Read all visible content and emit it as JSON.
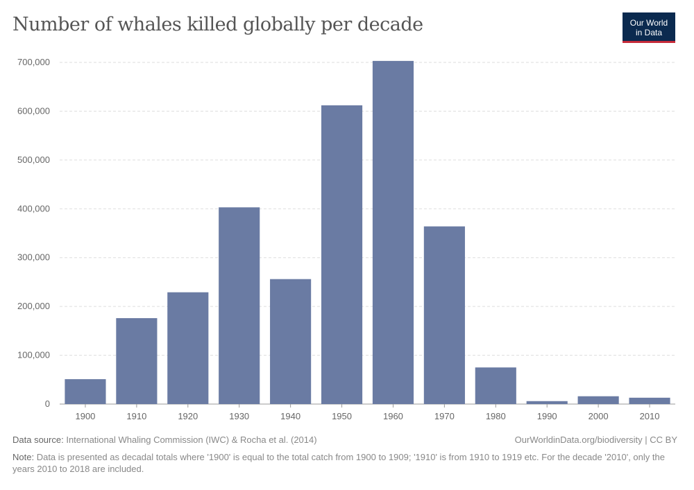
{
  "title": "Number of whales killed globally per decade",
  "logo": {
    "line1": "Our World",
    "line2": "in Data"
  },
  "footer": {
    "source_label": "Data source:",
    "source": "International Whaling Commission (IWC) & Rocha et al. (2014)",
    "url": "OurWorldinData.org/biodiversity | CC BY",
    "note_label": "Note:",
    "note": "Data is presented as decadal totals where '1900' is equal to the total catch from 1900 to 1909; '1910' is from 1910 to 1919 etc. For the decade '2010', only the years 2010 to 2018 are included."
  },
  "chart_data": {
    "type": "bar",
    "title": "Number of whales killed globally per decade",
    "categories": [
      "1900",
      "1910",
      "1920",
      "1930",
      "1940",
      "1950",
      "1960",
      "1970",
      "1980",
      "1990",
      "2000",
      "2010"
    ],
    "values": [
      51000,
      176000,
      229000,
      403000,
      256000,
      612000,
      703000,
      364000,
      75000,
      6000,
      16000,
      13000
    ],
    "ylim": [
      0,
      700000
    ],
    "yticks": [
      "0",
      "100,000",
      "200,000",
      "300,000",
      "400,000",
      "500,000",
      "600,000",
      "700,000"
    ],
    "grid": true,
    "bar_color": "#6a7ba3"
  }
}
